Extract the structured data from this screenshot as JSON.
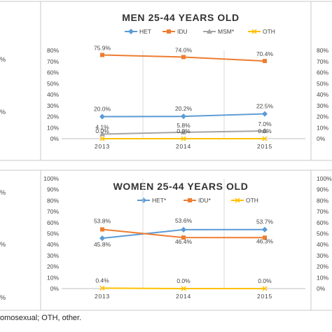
{
  "caption": "omosexual; OTH, other.",
  "left_partial_ticks": {
    "top": [
      "%",
      "%"
    ],
    "bottom": [
      "%",
      "%",
      "%"
    ]
  },
  "chart_data": [
    {
      "type": "line",
      "title": "MEN 25-44 YEARS OLD",
      "categories": [
        "2013",
        "2014",
        "2015"
      ],
      "y_ticks": [
        "0%",
        "10%",
        "20%",
        "30%",
        "40%",
        "50%",
        "60%",
        "70%",
        "80%"
      ],
      "right_y_ticks": [
        "0%",
        "10%",
        "20%",
        "30%",
        "40%",
        "50%",
        "60%",
        "70%",
        "80%"
      ],
      "ylim": [
        0,
        80
      ],
      "legend_position": "top",
      "series": [
        {
          "name": "HET",
          "color": "#5b9bd5",
          "values": [
            20.0,
            20.2,
            22.5
          ],
          "labels": [
            "20.0%",
            "20.2%",
            "22.5%"
          ]
        },
        {
          "name": "IDU",
          "color": "#ed7d31",
          "values": [
            75.9,
            74.0,
            70.4
          ],
          "labels": [
            "75.9%",
            "74.0%",
            "70.4%"
          ]
        },
        {
          "name": "MSM*",
          "color": "#a5a5a5",
          "values": [
            4.1,
            5.8,
            7.0
          ],
          "labels": [
            "4.1%",
            "5.8%",
            "7.0%"
          ]
        },
        {
          "name": "OTH",
          "color": "#ffc000",
          "values": [
            0.0,
            0.0,
            0.0
          ],
          "labels": [
            "0.0%",
            "0.0%",
            "0.0%"
          ]
        }
      ]
    },
    {
      "type": "line",
      "title": "WOMEN 25-44 YEARS OLD",
      "categories": [
        "2013",
        "2014",
        "2015"
      ],
      "y_ticks": [
        "0%",
        "10%",
        "20%",
        "30%",
        "40%",
        "50%",
        "60%",
        "70%",
        "80%",
        "90%",
        "100%"
      ],
      "right_y_ticks": [
        "0%",
        "10%",
        "20%",
        "30%",
        "40%",
        "50%",
        "60%",
        "70%",
        "80%",
        "90%",
        "100%"
      ],
      "ylim": [
        0,
        100
      ],
      "legend_position": "top",
      "series": [
        {
          "name": "HET*",
          "color": "#5b9bd5",
          "values": [
            45.8,
            53.6,
            53.7
          ],
          "labels": [
            "45.8%",
            "53.6%",
            "53.7%"
          ]
        },
        {
          "name": "IDU*",
          "color": "#ed7d31",
          "values": [
            53.8,
            46.4,
            46.3
          ],
          "labels": [
            "53.8%",
            "46.4%",
            "46.3%"
          ]
        },
        {
          "name": "OTH",
          "color": "#ffc000",
          "values": [
            0.4,
            0.0,
            0.0
          ],
          "labels": [
            "0.4%",
            "0.0%",
            "0.0%"
          ]
        }
      ]
    }
  ]
}
